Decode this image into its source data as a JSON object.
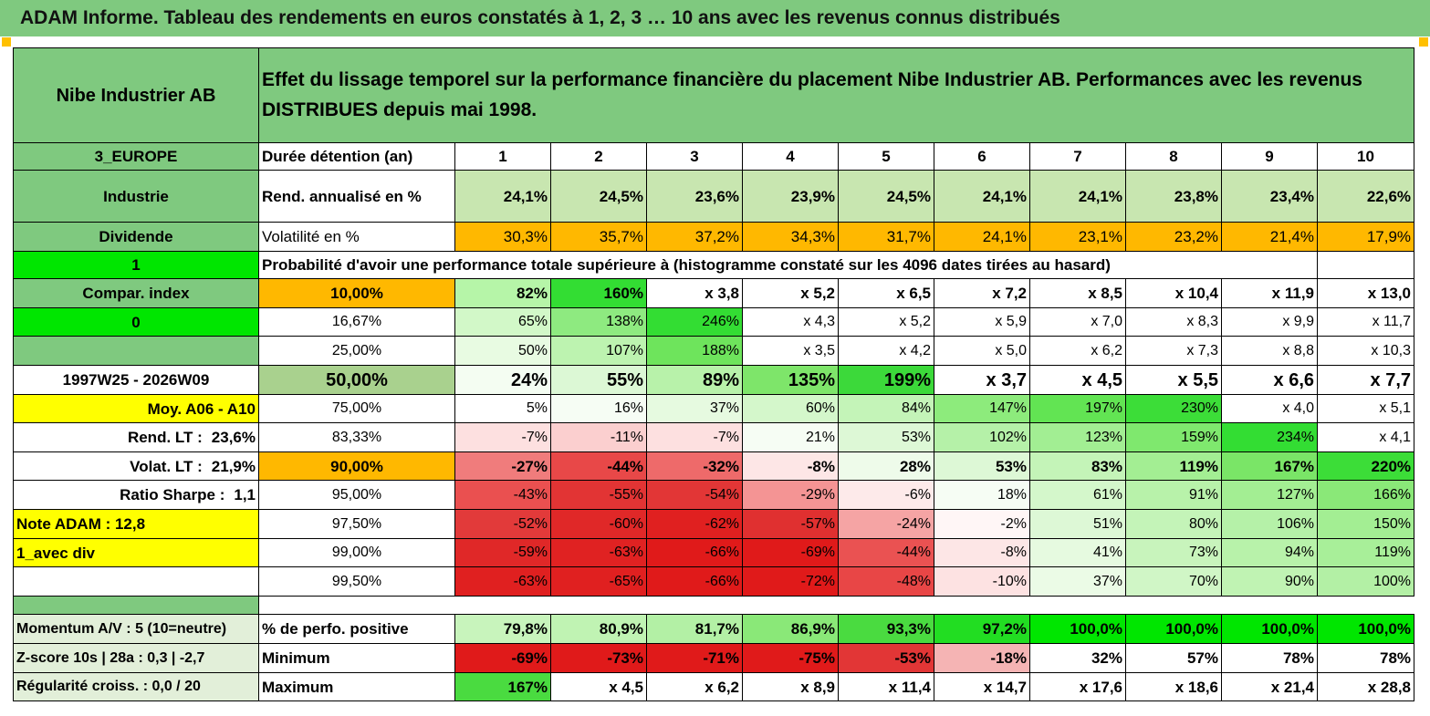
{
  "title": "ADAM Informe. Tableau des rendements en euros constatés à 1, 2, 3 … 10 ans avec les revenus connus distribués",
  "header": {
    "company": "Nibe Industrier AB",
    "description": "Effet du lissage temporel sur la performance financière du placement Nibe Industrier AB. Performances avec les revenus DISTRIBUES depuis mai 1998."
  },
  "info": {
    "region": "3_EUROPE",
    "sector": "Industrie",
    "revenue_type": "Dividende",
    "flag_one": "1",
    "compar_index": "Compar. index",
    "flag_zero": "0",
    "period": "1997W25 - 2026W09",
    "moy": "Moy. A06 - A10",
    "rend_lt_label": "Rend. LT :",
    "rend_lt_value": "23,6%",
    "volat_lt_label": "Volat. LT :",
    "volat_lt_value": "21,9%",
    "sharpe_label": "Ratio Sharpe :",
    "sharpe_value": "1,1",
    "note_adam": "Note ADAM : 12,8",
    "avec_div": "1_avec div",
    "momentum": "Momentum A/V : 5 (10=neutre)",
    "zscore": "Z-score 10s | 28a : 0,3 | -2,7",
    "regularite": "Régularité croiss. : 0,0 / 20"
  },
  "labels": {
    "duree": "Durée détention (an)",
    "rend": "Rend. annualisé en %",
    "vol": "Volatilité en %",
    "prob": "Probabilité d'avoir une performance totale supérieure à (histogramme constaté sur les 4096 dates tirées au hasard)",
    "pct_pos": "% de perfo. positive",
    "minimum": "Minimum",
    "maximum": "Maximum"
  },
  "years": [
    "1",
    "2",
    "3",
    "4",
    "5",
    "6",
    "7",
    "8",
    "9",
    "10"
  ],
  "rend": [
    "24,1%",
    "24,5%",
    "23,6%",
    "23,9%",
    "24,5%",
    "24,1%",
    "24,1%",
    "23,8%",
    "23,4%",
    "22,6%"
  ],
  "vol": [
    "30,3%",
    "35,7%",
    "37,2%",
    "34,3%",
    "31,7%",
    "24,1%",
    "23,1%",
    "23,2%",
    "21,4%",
    "17,9%"
  ],
  "prob_rows": [
    {
      "p": "10,00%",
      "v": [
        "82%",
        "160%",
        "x 3,8",
        "x 5,2",
        "x 6,5",
        "x 7,2",
        "x 8,5",
        "x 10,4",
        "x 11,9",
        "x 13,0"
      ]
    },
    {
      "p": "16,67%",
      "v": [
        "65%",
        "138%",
        "246%",
        "x 4,3",
        "x 5,2",
        "x 5,9",
        "x 7,0",
        "x 8,3",
        "x 9,9",
        "x 11,7"
      ]
    },
    {
      "p": "25,00%",
      "v": [
        "50%",
        "107%",
        "188%",
        "x 3,5",
        "x 4,2",
        "x 5,0",
        "x 6,2",
        "x 7,3",
        "x 8,8",
        "x 10,3"
      ]
    },
    {
      "p": "50,00%",
      "v": [
        "24%",
        "55%",
        "89%",
        "135%",
        "199%",
        "x 3,7",
        "x 4,5",
        "x 5,5",
        "x 6,6",
        "x 7,7"
      ]
    },
    {
      "p": "75,00%",
      "v": [
        "5%",
        "16%",
        "37%",
        "60%",
        "84%",
        "147%",
        "197%",
        "230%",
        "x 4,0",
        "x 5,1"
      ]
    },
    {
      "p": "83,33%",
      "v": [
        "-7%",
        "-11%",
        "-7%",
        "21%",
        "53%",
        "102%",
        "123%",
        "159%",
        "234%",
        "x 4,1"
      ]
    },
    {
      "p": "90,00%",
      "v": [
        "-27%",
        "-44%",
        "-32%",
        "-8%",
        "28%",
        "53%",
        "83%",
        "119%",
        "167%",
        "220%"
      ]
    },
    {
      "p": "95,00%",
      "v": [
        "-43%",
        "-55%",
        "-54%",
        "-29%",
        "-6%",
        "18%",
        "61%",
        "91%",
        "127%",
        "166%"
      ]
    },
    {
      "p": "97,50%",
      "v": [
        "-52%",
        "-60%",
        "-62%",
        "-57%",
        "-24%",
        "-2%",
        "51%",
        "80%",
        "106%",
        "150%"
      ]
    },
    {
      "p": "99,00%",
      "v": [
        "-59%",
        "-63%",
        "-66%",
        "-69%",
        "-44%",
        "-8%",
        "41%",
        "73%",
        "94%",
        "119%"
      ]
    },
    {
      "p": "99,50%",
      "v": [
        "-63%",
        "-65%",
        "-66%",
        "-72%",
        "-48%",
        "-10%",
        "37%",
        "70%",
        "90%",
        "100%"
      ]
    }
  ],
  "pct_pos": [
    "79,8%",
    "80,9%",
    "81,7%",
    "86,9%",
    "93,3%",
    "97,2%",
    "100,0%",
    "100,0%",
    "100,0%",
    "100,0%"
  ],
  "minimum": [
    "-69%",
    "-73%",
    "-71%",
    "-75%",
    "-53%",
    "-18%",
    "32%",
    "57%",
    "78%",
    "78%"
  ],
  "maximum": [
    "167%",
    "x 4,5",
    "x 6,2",
    "x 8,9",
    "x 11,4",
    "x 14,7",
    "x 17,6",
    "x 18,6",
    "x 21,4",
    "x 28,8"
  ],
  "colors": {
    "header_green": "#7fc97f",
    "light_green": "#c8e6b0",
    "orange": "#ffb800",
    "bright_green": "#00e600",
    "yellow": "#ffff00",
    "red_text": "#e60000"
  },
  "prob_colors": [
    [
      "#b6f5a8",
      "#33dd33",
      "#ffffff",
      "#ffffff",
      "#ffffff",
      "#ffffff",
      "#ffffff",
      "#ffffff",
      "#ffffff",
      "#ffffff"
    ],
    [
      "#d2f8c8",
      "#8eea80",
      "#33dd33",
      "#ffffff",
      "#ffffff",
      "#ffffff",
      "#ffffff",
      "#ffffff",
      "#ffffff",
      "#ffffff"
    ],
    [
      "#e8fbe2",
      "#bdf3b0",
      "#6ee45c",
      "#ffffff",
      "#ffffff",
      "#ffffff",
      "#ffffff",
      "#ffffff",
      "#ffffff",
      "#ffffff"
    ],
    [
      "#f4fdf2",
      "#dcf8d5",
      "#b8f2aa",
      "#7ee56a",
      "#3cd93a",
      "#ffffff",
      "#ffffff",
      "#ffffff",
      "#ffffff",
      "#ffffff"
    ],
    [
      "#ffffff",
      "#f6fdf4",
      "#e6fae0",
      "#d4f7cb",
      "#c4f4b8",
      "#8deb7c",
      "#62e453",
      "#3cdd38",
      "#ffffff",
      "#ffffff"
    ],
    [
      "#fde0e0",
      "#fbcfcf",
      "#fde0e0",
      "#f6fdf4",
      "#ddf8d6",
      "#b5f1a8",
      "#a2ee93",
      "#7fe86e",
      "#33dd33",
      "#ffffff"
    ],
    [
      "#f07c7c",
      "#e84848",
      "#ee6a6a",
      "#fde6e6",
      "#eefbea",
      "#ddf8d6",
      "#c4f4b8",
      "#a3ee93",
      "#7ae567",
      "#3cdd38"
    ],
    [
      "#ea5050",
      "#e23434",
      "#e23636",
      "#f49494",
      "#fdeaea",
      "#f6fdf4",
      "#d4f7cb",
      "#b8f2aa",
      "#a3ee93",
      "#8ae878"
    ],
    [
      "#e23a3a",
      "#e02828",
      "#e02020",
      "#e03030",
      "#f5a4a4",
      "#fff6f6",
      "#ddf8d6",
      "#c4f4b8",
      "#b5f1a8",
      "#a3ee93"
    ],
    [
      "#e02828",
      "#e02222",
      "#e01a1a",
      "#e01a1a",
      "#ea5252",
      "#fde6e6",
      "#e6fae0",
      "#c8f4bc",
      "#b8f2aa",
      "#a8ef99"
    ],
    [
      "#e02020",
      "#e02020",
      "#e01a1a",
      "#e01a1a",
      "#e84646",
      "#fde2e2",
      "#ebfbe6",
      "#d0f6c6",
      "#c0f3b3",
      "#b3f0a5"
    ]
  ],
  "rend_colors": [
    "#c8e6b0",
    "#c8e6b0",
    "#c8e6b0",
    "#c8e6b0",
    "#c8e6b0",
    "#c8e6b0",
    "#c8e6b0",
    "#c8e6b0",
    "#c8e6b0",
    "#c8e6b0"
  ],
  "pct_pos_colors": [
    "#c8f4bc",
    "#c0f3b3",
    "#b3f0a5",
    "#8ae878",
    "#4adb40",
    "#22dd22",
    "#00e600",
    "#00e600",
    "#00e600",
    "#00e600"
  ],
  "minimum_colors": [
    "#e01a1a",
    "#e01a1a",
    "#e01a1a",
    "#e01a1a",
    "#e23636",
    "#f5b4b4",
    "#ffffff",
    "#ffffff",
    "#ffffff",
    "#ffffff"
  ],
  "maximum_colors": [
    "#4adb40",
    "#ffffff",
    "#ffffff",
    "#ffffff",
    "#ffffff",
    "#ffffff",
    "#ffffff",
    "#ffffff",
    "#ffffff",
    "#ffffff"
  ]
}
